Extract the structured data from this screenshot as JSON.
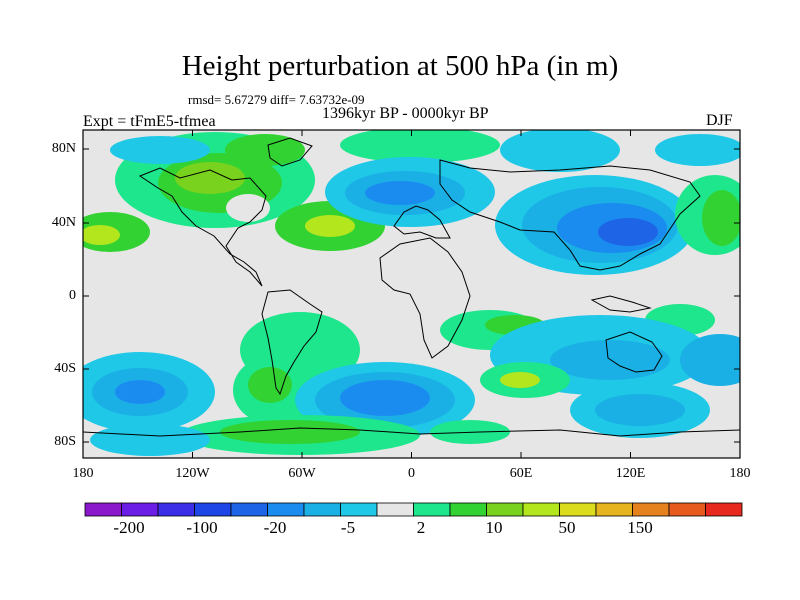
{
  "title": "Height perturbation at 500 hPa (in m)",
  "stats_line": "rmsd= 5.67279 diff= 7.63732e-09",
  "period": "1396kyr BP - 0000kyr BP",
  "experiment": "Expt = tFmE5-tfmea",
  "season": "DJF",
  "lat_ticks": [
    "80N",
    "40N",
    "0",
    "40S",
    "80S"
  ],
  "lon_ticks": [
    "180",
    "120W",
    "60W",
    "0",
    "60E",
    "120E",
    "180"
  ],
  "colorbar": {
    "colors": [
      "#8c18cc",
      "#6a1ee6",
      "#3b2ee6",
      "#1e46e6",
      "#1e64e6",
      "#1a8cf0",
      "#1ab0e6",
      "#1ec8e6",
      "#e6e6e6",
      "#1ee68c",
      "#32d232",
      "#78d21e",
      "#b4e61e",
      "#dcdc1e",
      "#e6b41e",
      "#e6821e",
      "#e65a1e",
      "#e6281e"
    ],
    "labels": [
      "-200",
      "-100",
      "-20",
      "-5",
      "2",
      "10",
      "50",
      "150"
    ]
  }
}
